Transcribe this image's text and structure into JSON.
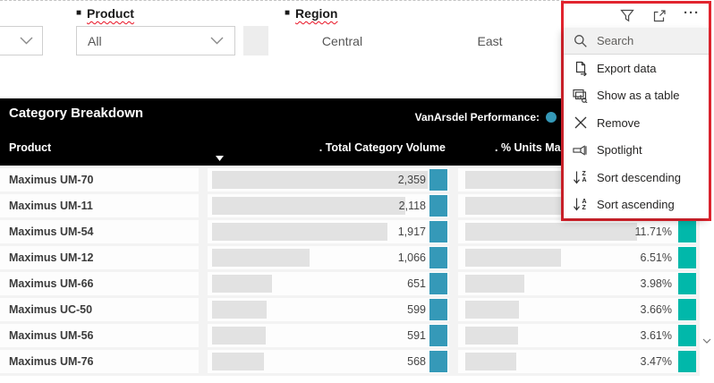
{
  "filters": {
    "product": {
      "label": "Product",
      "value": "All"
    },
    "region": {
      "label": "Region",
      "options": [
        "Central",
        "East"
      ]
    }
  },
  "visual_toolbar": {
    "filter_icon": "funnel-filter",
    "focus_icon": "focus-mode",
    "more_icon": "more-options",
    "more_glyph": "···"
  },
  "context_menu": {
    "search_placeholder": "Search",
    "items": [
      {
        "label": "Export data"
      },
      {
        "label": "Show as a table"
      },
      {
        "label": "Remove"
      },
      {
        "label": "Spotlight"
      },
      {
        "label": "Sort descending",
        "letters_top": "Z",
        "letters_bottom": "A"
      },
      {
        "label": "Sort ascending",
        "letters_top": "A",
        "letters_bottom": "Z"
      }
    ]
  },
  "table": {
    "title": "Category Breakdown",
    "legend_label": "VanArsdel Performance:",
    "columns": {
      "product": "Product",
      "volume": ". Total Category Volume",
      "pct": ". % Units Market"
    },
    "sorted_column": ". Total Category Volume",
    "rows": [
      {
        "product": "Maximus UM-70",
        "volume": "2,359",
        "volume_bar": 100,
        "pct": "",
        "pct_bar": 100
      },
      {
        "product": "Maximus UM-11",
        "volume": "2,118",
        "volume_bar": 89.8,
        "pct": "",
        "pct_bar": 97
      },
      {
        "product": "Maximus UM-54",
        "volume": "1,917",
        "volume_bar": 81.3,
        "pct": "11.71%",
        "pct_bar": 85
      },
      {
        "product": "Maximus UM-12",
        "volume": "1,066",
        "volume_bar": 45.2,
        "pct": "6.51%",
        "pct_bar": 47.5
      },
      {
        "product": "Maximus UM-66",
        "volume": "651",
        "volume_bar": 27.6,
        "pct": "3.98%",
        "pct_bar": 29
      },
      {
        "product": "Maximus UC-50",
        "volume": "599",
        "volume_bar": 25.4,
        "pct": "3.66%",
        "pct_bar": 26.7
      },
      {
        "product": "Maximus UM-56",
        "volume": "591",
        "volume_bar": 25.1,
        "pct": "3.61%",
        "pct_bar": 26.3
      },
      {
        "product": "Maximus UM-76",
        "volume": "568",
        "volume_bar": 24.1,
        "pct": "3.47%",
        "pct_bar": 25.3
      }
    ]
  },
  "colors": {
    "teal": "#3599B8",
    "green": "#01B8AA",
    "red": "#E1242E",
    "bar": "#E2E2E2"
  }
}
